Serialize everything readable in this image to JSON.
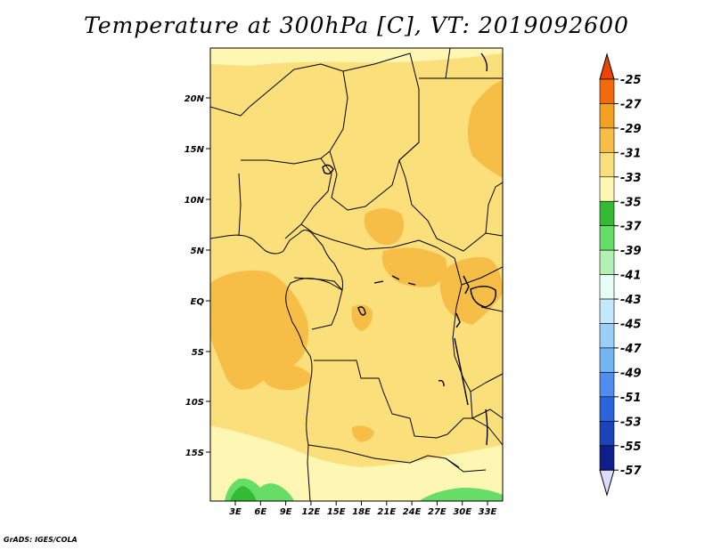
{
  "title": "Temperature at 300hPa [C], VT: 2019092600",
  "credit": "GrADS: IGES/COLA",
  "map": {
    "lat_labels": [
      "20N",
      "15N",
      "10N",
      "5N",
      "EQ",
      "5S",
      "10S",
      "15S"
    ],
    "lon_labels": [
      "3E",
      "6E",
      "9E",
      "12E",
      "15E",
      "18E",
      "21E",
      "24E",
      "27E",
      "30E",
      "33E"
    ]
  },
  "colorbar": {
    "labels": [
      "-25",
      "-27",
      "-29",
      "-31",
      "-33",
      "-35",
      "-37",
      "-39",
      "-41",
      "-43",
      "-45",
      "-47",
      "-49",
      "-51",
      "-53",
      "-55",
      "-57"
    ],
    "colors": {
      "top_triangle": "#ee4400",
      "bin_-25_-27": "#f36a0a",
      "bin_-27_-29": "#f3a020",
      "bin_-29_-31": "#f6be46",
      "bin_-31_-33": "#fadf7a",
      "bin_-33_-35": "#fef7b4",
      "bin_-35_-37": "#33bb33",
      "bin_-37_-39": "#66dd66",
      "bin_-39_-41": "#b3f0b3",
      "bin_-41_-43": "#e6fff6",
      "bin_-43_-45": "#c3e7fb",
      "bin_-45_-47": "#9ad0f7",
      "bin_-47_-49": "#73b4f2",
      "bin_-49_-51": "#4f8ef0",
      "bin_-51_-53": "#2a65dc",
      "bin_-53_-55": "#1a44b8",
      "bin_-55_-57": "#0e1f8c",
      "bottom_triangle": "#dcdcff"
    }
  }
}
